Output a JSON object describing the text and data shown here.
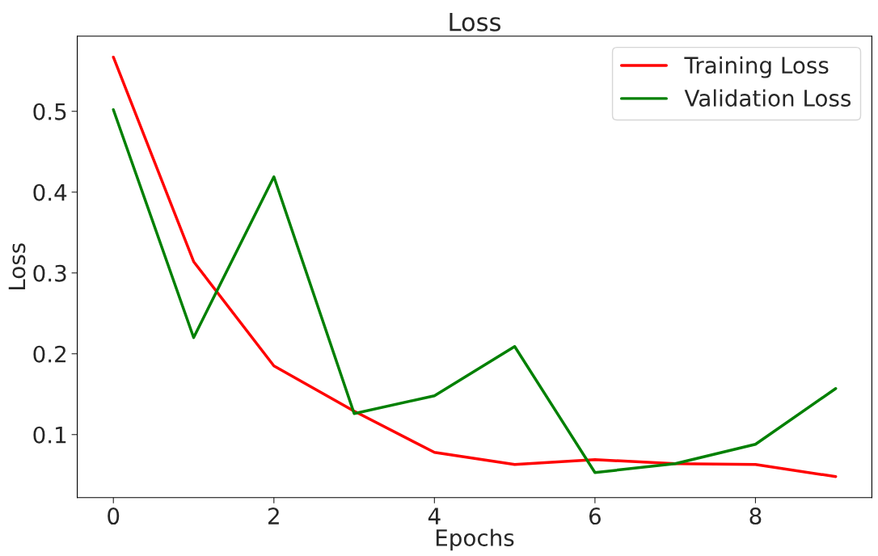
{
  "chart_data": {
    "type": "line",
    "title": "Loss",
    "xlabel": "Epochs",
    "ylabel": "Loss",
    "x": [
      0,
      1,
      2,
      3,
      4,
      5,
      6,
      7,
      8,
      9
    ],
    "series": [
      {
        "name": "Training Loss",
        "color": "#ff0000",
        "values": [
          0.567,
          0.314,
          0.185,
          0.129,
          0.078,
          0.063,
          0.069,
          0.064,
          0.063,
          0.048
        ]
      },
      {
        "name": "Validation Loss",
        "color": "#008000",
        "values": [
          0.502,
          0.22,
          0.419,
          0.126,
          0.148,
          0.209,
          0.053,
          0.064,
          0.088,
          0.157
        ]
      }
    ],
    "xlim": [
      -0.45,
      9.45
    ],
    "ylim": [
      0.022,
      0.593
    ],
    "xticks": [
      0,
      2,
      4,
      6,
      8
    ],
    "yticks": [
      0.1,
      0.2,
      0.3,
      0.4,
      0.5
    ],
    "grid": false,
    "legend": "top right"
  }
}
